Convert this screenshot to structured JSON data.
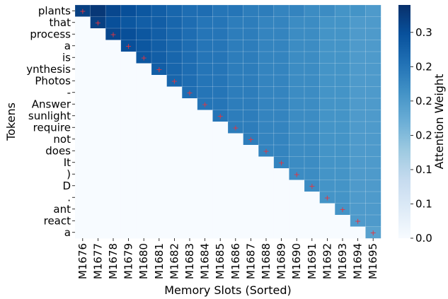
{
  "chart_data": {
    "type": "heatmap",
    "xlabel": "Memory Slots (Sorted)",
    "ylabel": "Tokens",
    "x_categories": [
      "M1676",
      "M1677",
      "M1678",
      "M1679",
      "M1680",
      "M1681",
      "M1682",
      "M1683",
      "M1684",
      "M1685",
      "M1686",
      "M1687",
      "M1688",
      "M1689",
      "M1690",
      "M1691",
      "M1692",
      "M1693",
      "M1694",
      "M1695"
    ],
    "y_categories": [
      "plants",
      "that",
      "process",
      "a",
      "is",
      "ynthesis",
      "Photos",
      "-",
      "Answer",
      "sunlight",
      "require",
      "not",
      "does",
      "It",
      ")",
      "D",
      ".",
      "ant",
      "react",
      "a"
    ],
    "mask": "lower-triangle-below-diagonal",
    "marker": {
      "symbol": "+",
      "color": "#e8323c",
      "position": "diagonal"
    },
    "colorbar": {
      "label": "Attention Weight",
      "range": [
        0.0,
        0.34
      ],
      "tick_labels": [
        "0.0",
        "0.1",
        "0.1",
        "0.2",
        "0.2",
        "0.2",
        "0.3"
      ],
      "tick_values": [
        0.0,
        0.05,
        0.1,
        0.15,
        0.2,
        0.25,
        0.3
      ],
      "colormap": "Blues"
    },
    "values": [
      [
        0.32,
        0.33,
        0.31,
        0.3,
        0.29,
        0.28,
        0.27,
        0.26,
        0.26,
        0.25,
        0.25,
        0.24,
        0.24,
        0.23,
        0.23,
        0.22,
        0.22,
        0.21,
        0.21,
        0.2
      ],
      [
        0.0,
        0.32,
        0.3,
        0.29,
        0.28,
        0.28,
        0.27,
        0.26,
        0.25,
        0.25,
        0.24,
        0.24,
        0.23,
        0.23,
        0.22,
        0.22,
        0.21,
        0.21,
        0.2,
        0.2
      ],
      [
        0.0,
        0.0,
        0.31,
        0.3,
        0.29,
        0.28,
        0.27,
        0.26,
        0.25,
        0.25,
        0.24,
        0.24,
        0.23,
        0.23,
        0.22,
        0.22,
        0.21,
        0.21,
        0.2,
        0.2
      ],
      [
        0.0,
        0.0,
        0.0,
        0.3,
        0.29,
        0.28,
        0.27,
        0.26,
        0.25,
        0.25,
        0.24,
        0.24,
        0.23,
        0.23,
        0.22,
        0.22,
        0.21,
        0.21,
        0.2,
        0.2
      ],
      [
        0.0,
        0.0,
        0.0,
        0.0,
        0.29,
        0.28,
        0.27,
        0.26,
        0.25,
        0.25,
        0.24,
        0.24,
        0.23,
        0.23,
        0.22,
        0.22,
        0.21,
        0.21,
        0.2,
        0.2
      ],
      [
        0.0,
        0.0,
        0.0,
        0.0,
        0.0,
        0.28,
        0.27,
        0.26,
        0.25,
        0.25,
        0.24,
        0.24,
        0.23,
        0.23,
        0.22,
        0.22,
        0.21,
        0.21,
        0.2,
        0.2
      ],
      [
        0.0,
        0.0,
        0.0,
        0.0,
        0.0,
        0.0,
        0.27,
        0.26,
        0.25,
        0.25,
        0.24,
        0.24,
        0.23,
        0.23,
        0.22,
        0.22,
        0.21,
        0.21,
        0.2,
        0.2
      ],
      [
        0.0,
        0.0,
        0.0,
        0.0,
        0.0,
        0.0,
        0.0,
        0.26,
        0.25,
        0.25,
        0.24,
        0.24,
        0.23,
        0.23,
        0.22,
        0.22,
        0.21,
        0.21,
        0.2,
        0.2
      ],
      [
        0.0,
        0.0,
        0.0,
        0.0,
        0.0,
        0.0,
        0.0,
        0.0,
        0.25,
        0.25,
        0.24,
        0.24,
        0.23,
        0.23,
        0.22,
        0.22,
        0.21,
        0.21,
        0.2,
        0.2
      ],
      [
        0.0,
        0.0,
        0.0,
        0.0,
        0.0,
        0.0,
        0.0,
        0.0,
        0.0,
        0.25,
        0.24,
        0.24,
        0.23,
        0.23,
        0.22,
        0.22,
        0.21,
        0.21,
        0.2,
        0.2
      ],
      [
        0.0,
        0.0,
        0.0,
        0.0,
        0.0,
        0.0,
        0.0,
        0.0,
        0.0,
        0.0,
        0.24,
        0.24,
        0.23,
        0.23,
        0.22,
        0.22,
        0.21,
        0.21,
        0.2,
        0.2
      ],
      [
        0.0,
        0.0,
        0.0,
        0.0,
        0.0,
        0.0,
        0.0,
        0.0,
        0.0,
        0.0,
        0.0,
        0.24,
        0.23,
        0.23,
        0.22,
        0.22,
        0.21,
        0.21,
        0.2,
        0.2
      ],
      [
        0.0,
        0.0,
        0.0,
        0.0,
        0.0,
        0.0,
        0.0,
        0.0,
        0.0,
        0.0,
        0.0,
        0.0,
        0.23,
        0.23,
        0.22,
        0.22,
        0.21,
        0.21,
        0.2,
        0.2
      ],
      [
        0.0,
        0.0,
        0.0,
        0.0,
        0.0,
        0.0,
        0.0,
        0.0,
        0.0,
        0.0,
        0.0,
        0.0,
        0.0,
        0.23,
        0.22,
        0.22,
        0.21,
        0.21,
        0.2,
        0.2
      ],
      [
        0.0,
        0.0,
        0.0,
        0.0,
        0.0,
        0.0,
        0.0,
        0.0,
        0.0,
        0.0,
        0.0,
        0.0,
        0.0,
        0.0,
        0.22,
        0.22,
        0.21,
        0.21,
        0.2,
        0.2
      ],
      [
        0.0,
        0.0,
        0.0,
        0.0,
        0.0,
        0.0,
        0.0,
        0.0,
        0.0,
        0.0,
        0.0,
        0.0,
        0.0,
        0.0,
        0.0,
        0.22,
        0.21,
        0.21,
        0.2,
        0.2
      ],
      [
        0.0,
        0.0,
        0.0,
        0.0,
        0.0,
        0.0,
        0.0,
        0.0,
        0.0,
        0.0,
        0.0,
        0.0,
        0.0,
        0.0,
        0.0,
        0.0,
        0.21,
        0.21,
        0.2,
        0.2
      ],
      [
        0.0,
        0.0,
        0.0,
        0.0,
        0.0,
        0.0,
        0.0,
        0.0,
        0.0,
        0.0,
        0.0,
        0.0,
        0.0,
        0.0,
        0.0,
        0.0,
        0.0,
        0.21,
        0.2,
        0.2
      ],
      [
        0.0,
        0.0,
        0.0,
        0.0,
        0.0,
        0.0,
        0.0,
        0.0,
        0.0,
        0.0,
        0.0,
        0.0,
        0.0,
        0.0,
        0.0,
        0.0,
        0.0,
        0.0,
        0.2,
        0.2
      ],
      [
        0.0,
        0.0,
        0.0,
        0.0,
        0.0,
        0.0,
        0.0,
        0.0,
        0.0,
        0.0,
        0.0,
        0.0,
        0.0,
        0.0,
        0.0,
        0.0,
        0.0,
        0.0,
        0.0,
        0.19
      ]
    ]
  }
}
